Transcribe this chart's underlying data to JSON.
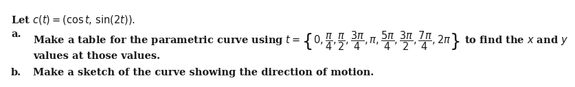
{
  "bg_color": "#ffffff",
  "line0": "Let $c(t) = (\\cos t,\\, \\sin(2t)).$",
  "line_a_label": "a.",
  "line_a_text": "Make a table for the parametric curve using $t = \\left\\{0, \\dfrac{\\pi}{4}, \\dfrac{\\pi}{2}, \\dfrac{3\\pi}{4}, \\pi, \\dfrac{5\\pi}{4}, \\dfrac{3\\pi}{2}, \\dfrac{7\\pi}{4}, 2\\pi\\right\\}$ to find the $x$ and $y$",
  "line_a2": "values at those values.",
  "line_b_label": "b.",
  "line_b_text": "Make a sketch of the curve showing the direction of motion.",
  "fontsize": 10.5,
  "text_color": "#1a1a1a"
}
